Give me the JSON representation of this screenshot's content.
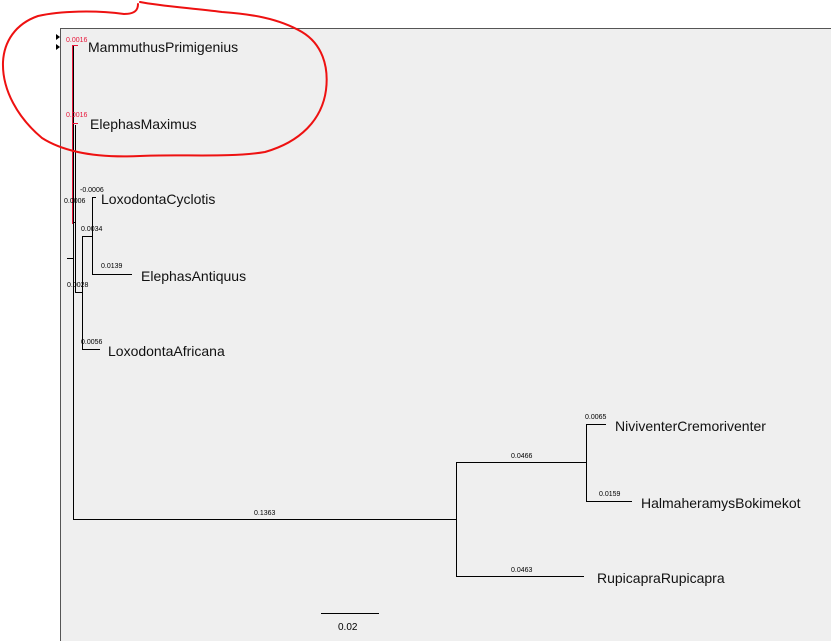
{
  "panel": {
    "background": "#efefef",
    "border_color": "#555555"
  },
  "annotation": {
    "shape": "hand-drawn circle",
    "color": "#ee1111",
    "encloses": [
      "MammuthusPrimigenius",
      "ElephasMaximus"
    ]
  },
  "highlight_color": "#e8173a",
  "tree": {
    "taxa": [
      {
        "id": "mammuthus",
        "label": "MammuthusPrimigenius",
        "branch_length_label": "0.0016",
        "highlighted": true
      },
      {
        "id": "elephas_maximus",
        "label": "ElephasMaximus",
        "branch_length_label": "0.0016",
        "highlighted": true
      },
      {
        "id": "loxodonta_cyclotis",
        "label": "LoxodontaCyclotis",
        "branch_length_label": "-0.0006",
        "highlighted": false
      },
      {
        "id": "elephas_antiquus",
        "label": "ElephasAntiquus",
        "branch_length_label": "0.0139",
        "highlighted": false
      },
      {
        "id": "loxodonta_africana",
        "label": "LoxodontaAfricana",
        "branch_length_label": "0.0056",
        "highlighted": false
      },
      {
        "id": "niviventer",
        "label": "NiviventerCremoriventer",
        "branch_length_label": "0.0065",
        "highlighted": false
      },
      {
        "id": "halmaheramys",
        "label": "HalmaheramysBokimekot",
        "branch_length_label": "0.0159",
        "highlighted": false
      },
      {
        "id": "rupicapra",
        "label": "RupicapraRupicapra",
        "branch_length_label": "0.0463",
        "highlighted": false
      }
    ],
    "internal_branch_labels": [
      "0.0006",
      "0.0034",
      "0.0028",
      "0.1363",
      "0.0466"
    ]
  },
  "scale_bar": {
    "label": "0.02"
  }
}
